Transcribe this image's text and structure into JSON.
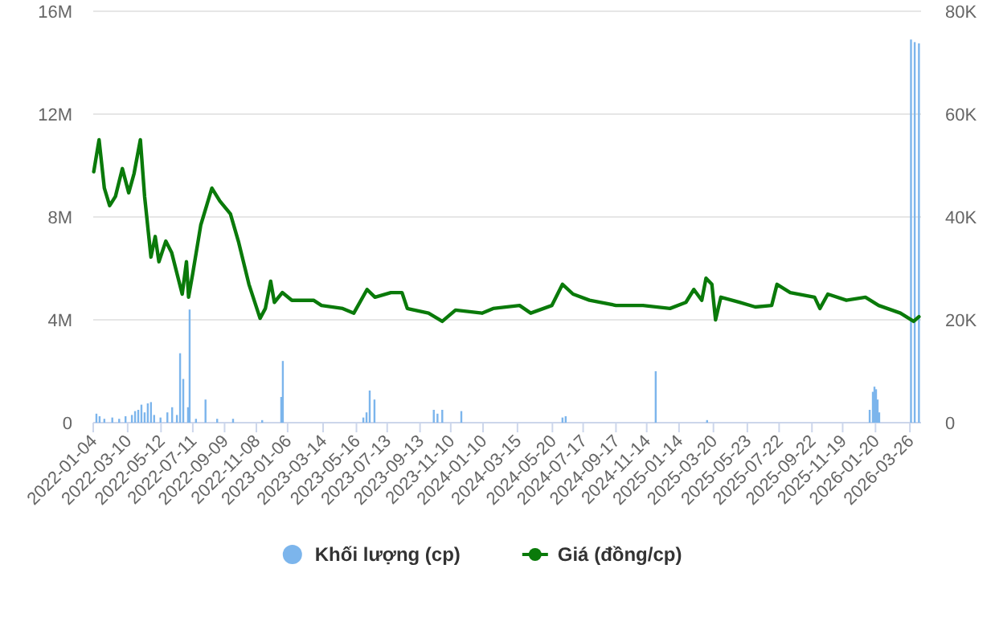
{
  "chart_data": {
    "type": "bar",
    "xlim": [
      "2022-01-04",
      "2026-04-16"
    ],
    "xticks": [
      "2022-01-04",
      "2022-03-10",
      "2022-05-12",
      "2022-07-11",
      "2022-09-09",
      "2022-11-08",
      "2023-01-06",
      "2023-03-14",
      "2023-05-16",
      "2023-07-13",
      "2023-09-13",
      "2023-11-10",
      "2024-01-10",
      "2024-03-15",
      "2024-05-20",
      "2024-07-17",
      "2024-09-17",
      "2024-11-14",
      "2025-01-14",
      "2025-03-20",
      "2025-05-23",
      "2025-07-22",
      "2025-09-22",
      "2025-11-19",
      "2026-01-20",
      "2026-03-26"
    ],
    "ylim": [
      0,
      16
    ],
    "yticks": [
      {
        "value": 0,
        "label": "0"
      },
      {
        "value": 4,
        "label": "4M"
      },
      {
        "value": 8,
        "label": "8M"
      },
      {
        "value": 12,
        "label": "12M"
      },
      {
        "value": 16,
        "label": "16M"
      }
    ],
    "y2lim": [
      0,
      80
    ],
    "y2ticks": [
      {
        "value": 0,
        "label": "0"
      },
      {
        "value": 20,
        "label": "20K"
      },
      {
        "value": 40,
        "label": "40K"
      },
      {
        "value": 60,
        "label": "60K"
      },
      {
        "value": 80,
        "label": "80K"
      }
    ],
    "grid": "y",
    "legend": "bottom",
    "series": [
      {
        "name": "Khối lượng (cp)",
        "color": "#7cb5ec",
        "x": [
          "2022-01-10",
          "2022-01-16",
          "2022-01-25",
          "2022-02-09",
          "2022-02-22",
          "2022-03-06",
          "2022-03-18",
          "2022-03-24",
          "2022-03-30",
          "2022-04-05",
          "2022-04-11",
          "2022-04-17",
          "2022-04-23",
          "2022-04-29",
          "2022-05-11",
          "2022-05-24",
          "2022-06-02",
          "2022-06-11",
          "2022-06-17",
          "2022-06-23",
          "2022-07-02",
          "2022-07-05",
          "2022-07-17",
          "2022-08-04",
          "2022-08-26",
          "2022-09-25",
          "2022-11-19",
          "2022-12-25",
          "2022-12-28",
          "2023-05-29",
          "2023-06-04",
          "2023-06-10",
          "2023-06-19",
          "2023-10-09",
          "2023-10-16",
          "2023-10-25",
          "2023-11-30",
          "2024-06-08",
          "2024-06-14",
          "2024-12-01",
          "2025-03-08",
          "2026-01-09",
          "2026-01-15",
          "2026-01-18",
          "2026-01-21",
          "2026-01-24",
          "2026-01-27",
          "2026-03-28",
          "2026-04-04",
          "2026-04-12"
        ],
        "values": [
          0.35,
          0.25,
          0.15,
          0.2,
          0.15,
          0.25,
          0.3,
          0.45,
          0.5,
          0.7,
          0.4,
          0.75,
          0.8,
          0.3,
          0.2,
          0.4,
          0.6,
          0.3,
          2.7,
          1.7,
          0.6,
          4.4,
          0.15,
          0.9,
          0.15,
          0.15,
          0.1,
          1.0,
          2.4,
          0.2,
          0.4,
          1.25,
          0.9,
          0.5,
          0.35,
          0.5,
          0.45,
          0.2,
          0.25,
          2.0,
          0.1,
          0.5,
          1.2,
          1.4,
          1.3,
          0.9,
          0.4,
          14.9,
          14.8,
          14.75
        ]
      },
      {
        "name": "Giá (đồng/cp)",
        "type": "line",
        "axis": "y2",
        "color": "#0a7a0a",
        "x": [
          "2022-01-05",
          "2022-01-15",
          "2022-01-25",
          "2022-02-04",
          "2022-02-15",
          "2022-02-28",
          "2022-03-12",
          "2022-03-22",
          "2022-04-03",
          "2022-04-11",
          "2022-04-23",
          "2022-05-01",
          "2022-05-08",
          "2022-05-21",
          "2022-06-01",
          "2022-06-21",
          "2022-06-29",
          "2022-07-03",
          "2022-07-11",
          "2022-07-26",
          "2022-08-16",
          "2022-08-31",
          "2022-09-20",
          "2022-10-05",
          "2022-10-25",
          "2022-11-15",
          "2022-11-25",
          "2022-12-05",
          "2022-12-12",
          "2022-12-27",
          "2023-01-14",
          "2023-02-24",
          "2023-03-11",
          "2023-04-20",
          "2023-05-11",
          "2023-06-05",
          "2023-06-20",
          "2023-07-20",
          "2023-08-10",
          "2023-08-20",
          "2023-09-29",
          "2023-10-25",
          "2023-11-19",
          "2024-01-08",
          "2024-01-29",
          "2024-03-19",
          "2024-04-09",
          "2024-05-19",
          "2024-06-08",
          "2024-06-28",
          "2024-07-29",
          "2024-09-17",
          "2024-11-07",
          "2024-12-28",
          "2025-01-27",
          "2025-02-11",
          "2025-02-26",
          "2025-03-06",
          "2025-03-17",
          "2025-03-24",
          "2025-04-03",
          "2025-05-08",
          "2025-06-07",
          "2025-07-08",
          "2025-07-18",
          "2025-08-12",
          "2025-09-27",
          "2025-10-07",
          "2025-10-22",
          "2025-11-26",
          "2026-01-01",
          "2026-01-26",
          "2026-03-08",
          "2026-04-02",
          "2026-04-12"
        ],
        "values": [
          48.8,
          55,
          45.6,
          42.2,
          44,
          49.4,
          44.7,
          48.4,
          55,
          44,
          32.2,
          36.2,
          31.3,
          35.3,
          33.1,
          25,
          31.3,
          24.4,
          29.1,
          38.4,
          45.6,
          43.1,
          40.6,
          35.3,
          26.9,
          20.3,
          22.2,
          27.5,
          23.4,
          25.3,
          23.8,
          23.8,
          22.8,
          22.2,
          21.3,
          25.9,
          24.4,
          25.3,
          25.3,
          22.2,
          21.3,
          19.7,
          21.9,
          21.3,
          22.2,
          22.8,
          21.3,
          22.8,
          26.9,
          25,
          23.8,
          22.8,
          22.8,
          22.2,
          23.4,
          25.9,
          23.8,
          28.1,
          26.9,
          20,
          24.4,
          23.4,
          22.5,
          22.8,
          26.9,
          25.3,
          24.4,
          22.2,
          25,
          23.8,
          24.4,
          22.8,
          21.3,
          19.7,
          20.6
        ]
      }
    ]
  }
}
